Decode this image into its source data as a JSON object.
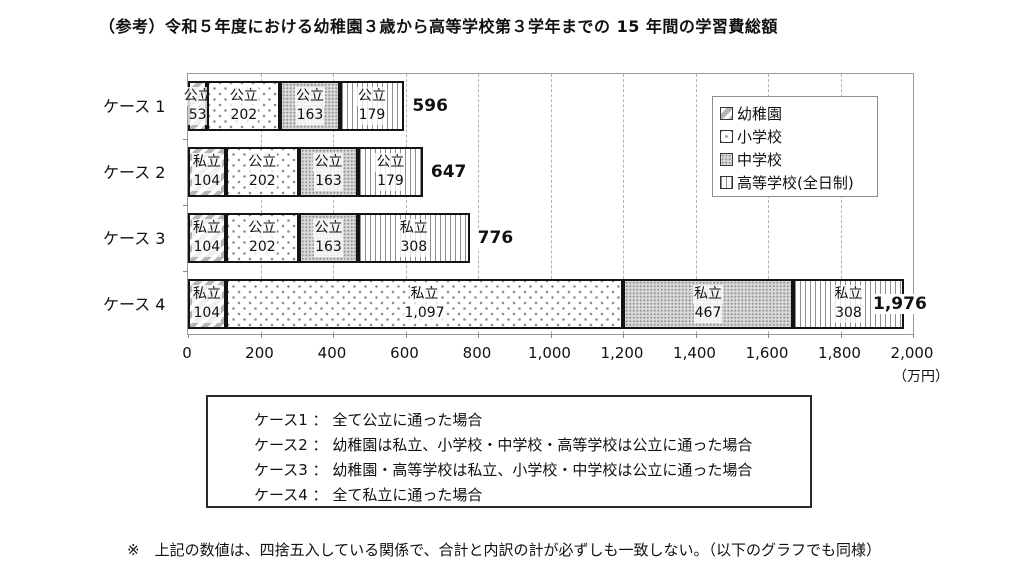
{
  "title": "（参考）令和５年度における幼稚園３歳から高等学校第３学年までの 15 年間の学習費総額",
  "chart_data": {
    "type": "bar",
    "orientation": "horizontal",
    "stacked": true,
    "unit": "（万円）",
    "xlim": [
      0,
      2000
    ],
    "grid": "dashed-vertical-every-200",
    "tick_values": [
      0,
      200,
      400,
      600,
      800,
      1000,
      1200,
      1400,
      1600,
      1800,
      2000
    ],
    "tick_labels": [
      "0",
      "200",
      "400",
      "600",
      "800",
      "1,000",
      "1,200",
      "1,400",
      "1,600",
      "1,800",
      "2,000"
    ],
    "legend_position": "top-right-inside-plot",
    "legend": [
      {
        "label": "幼稚園",
        "pattern": "diagonal-hatch"
      },
      {
        "label": "小学校",
        "pattern": "sparse-dots"
      },
      {
        "label": "中学校",
        "pattern": "dense-dots"
      },
      {
        "label": "高等学校(全日制)",
        "pattern": "vertical-lines"
      }
    ],
    "rows": [
      {
        "category": "ケース 1",
        "total": 596,
        "total_label": "596",
        "segments": [
          {
            "sector": "公立",
            "value": 53,
            "label": "53"
          },
          {
            "sector": "公立",
            "value": 202,
            "label": "202"
          },
          {
            "sector": "公立",
            "value": 163,
            "label": "163"
          },
          {
            "sector": "公立",
            "value": 179,
            "label": "179"
          }
        ]
      },
      {
        "category": "ケース 2",
        "total": 647,
        "total_label": "647",
        "segments": [
          {
            "sector": "私立",
            "value": 104,
            "label": "104"
          },
          {
            "sector": "公立",
            "value": 202,
            "label": "202"
          },
          {
            "sector": "公立",
            "value": 163,
            "label": "163"
          },
          {
            "sector": "公立",
            "value": 179,
            "label": "179"
          }
        ]
      },
      {
        "category": "ケース 3",
        "total": 776,
        "total_label": "776",
        "segments": [
          {
            "sector": "私立",
            "value": 104,
            "label": "104"
          },
          {
            "sector": "公立",
            "value": 202,
            "label": "202"
          },
          {
            "sector": "公立",
            "value": 163,
            "label": "163"
          },
          {
            "sector": "私立",
            "value": 308,
            "label": "308"
          }
        ]
      },
      {
        "category": "ケース 4",
        "total": 1976,
        "total_label": "1,976",
        "segments": [
          {
            "sector": "私立",
            "value": 104,
            "label": "104"
          },
          {
            "sector": "私立",
            "value": 1097,
            "label": "1,097"
          },
          {
            "sector": "私立",
            "value": 467,
            "label": "467"
          },
          {
            "sector": "私立",
            "value": 308,
            "label": "308"
          }
        ]
      }
    ],
    "colors": {
      "bar_border": "#141414",
      "grid_line": "#b3b3b3",
      "hatch_gray": "#b5b5b5",
      "text": "#111111"
    }
  },
  "notes": {
    "lines": [
      "ケース1 ： 全て公立に通った場合",
      "ケース2 ： 幼稚園は私立、小学校・中学校・高等学校は公立に通った場合",
      "ケース3 ： 幼稚園・高等学校は私立、小学校・中学校は公立に通った場合",
      "ケース4 ： 全て私立に通った場合"
    ]
  },
  "footnote": "※　上記の数値は、四捨五入している関係で、合計と内訳の計が必ずしも一致しない。（以下のグラフでも同様）"
}
